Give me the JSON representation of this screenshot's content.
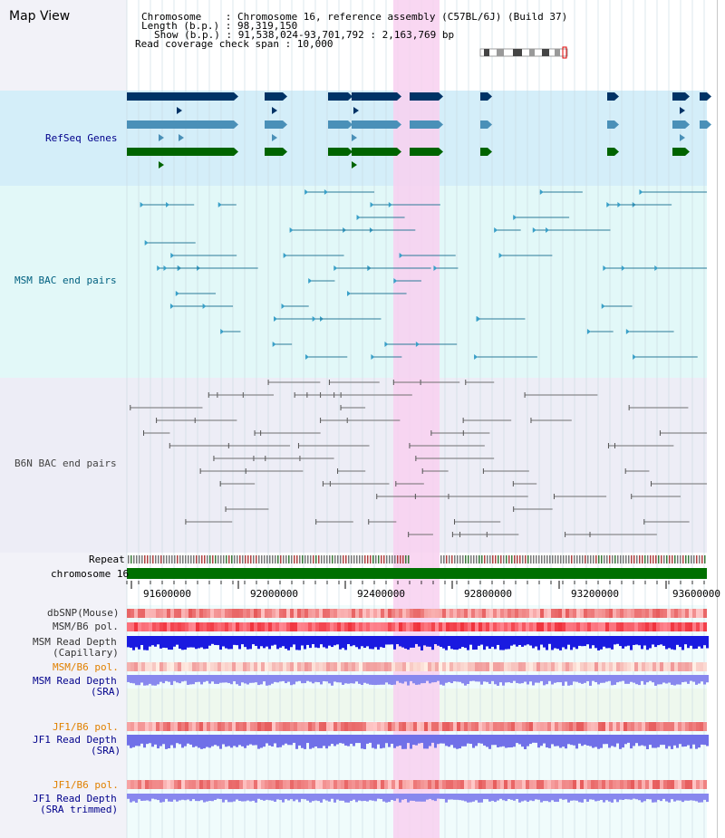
{
  "header": {
    "title": "Map View",
    "chromosome_line": "Chromosome    : Chromosome 16, reference assembly (C57BL/6J) (Build 37)",
    "length_line": "Length (b.p.) : 98,319,150",
    "show_line": "Show (b.p.) : 91,538,024-93,701,792 : 2,163,769 bp",
    "coverage_line": "Read coverage check span : 10,000"
  },
  "tracks": {
    "refseq": "RefSeq Genes",
    "msm_bac": "MSM BAC end pairs",
    "b6n_bac": "B6N BAC end pairs",
    "repeat": "Repeat",
    "chromosome": "chromosome 16",
    "dbsnp": "dbSNP(Mouse)",
    "msm_b6_pol_1": "MSM/B6 pol.",
    "msm_depth_cap_1": "MSM Read Depth",
    "msm_depth_cap_2": "(Capillary)",
    "msm_b6_pol_2": "MSM/B6 pol.",
    "msm_depth_sra_1": "MSM Read Depth",
    "msm_depth_sra_2": "(SRA)",
    "jf1_b6_pol_1": "JF1/B6 pol.",
    "jf1_depth_sra_1": "JF1 Read Depth",
    "jf1_depth_sra_2": "(SRA)",
    "jf1_b6_pol_2": "JF1/B6 pol.",
    "jf1_depth_trim_1": "JF1 Read Depth",
    "jf1_depth_trim_2": "(SRA trimmed)"
  },
  "ruler": {
    "labels": [
      "91600000",
      "92000000",
      "92400000",
      "92800000",
      "93200000",
      "93600000"
    ]
  },
  "colors": {
    "refseq_label": "#00008b",
    "msm_label": "#006080",
    "b6n_label": "#444444",
    "pol_label": "#e08000",
    "depth_label": "#00008b",
    "highlight": "#f8d0f0",
    "chromosome_bar": "#007000"
  }
}
